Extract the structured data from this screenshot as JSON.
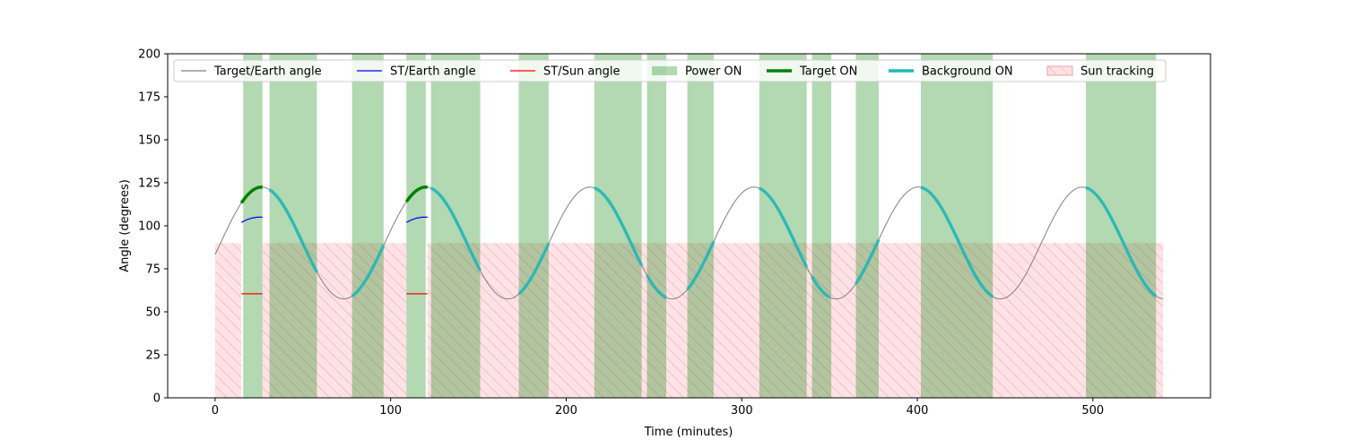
{
  "chart_data": {
    "type": "line",
    "title": "",
    "xlabel": "Time (minutes)",
    "ylabel": "Angle (degrees)",
    "xlim": [
      -27,
      567
    ],
    "ylim": [
      0,
      200
    ],
    "xticks": [
      0,
      100,
      200,
      300,
      400,
      500
    ],
    "yticks": [
      0,
      25,
      50,
      75,
      100,
      125,
      150,
      175,
      200
    ],
    "grid": false,
    "legend_position": "top, inside the axes",
    "series": [
      {
        "name": "Target/Earth angle",
        "color": "#808080",
        "style": "thin line",
        "curve": {
          "mean": 90.0,
          "amplitude": 32.5,
          "period_min": 93.5,
          "first_peak_min": 26.5,
          "x_start": 0,
          "x_end": 540
        }
      },
      {
        "name": "ST/Earth angle",
        "color": "#0000ff",
        "style": "thin line",
        "segments": [
          {
            "x": [
              15,
              18,
              21,
              24,
              27
            ],
            "y": [
              102,
              103.5,
              104.5,
              105,
              105
            ]
          },
          {
            "x": [
              109,
              112,
              115,
              118,
              121
            ],
            "y": [
              102,
              103.5,
              104.5,
              105,
              105
            ]
          }
        ]
      },
      {
        "name": "ST/Sun angle",
        "color": "#ff0000",
        "style": "thin line",
        "segments": [
          {
            "x": [
              15,
              27
            ],
            "y": [
              60.5,
              60.5
            ]
          },
          {
            "x": [
              109,
              121
            ],
            "y": [
              60.5,
              60.5
            ]
          }
        ]
      },
      {
        "name": "Target ON",
        "color": "#008000",
        "style": "thick line on Target/Earth curve",
        "intervals": [
          [
            15,
            27
          ],
          [
            109,
            121
          ]
        ]
      },
      {
        "name": "Background ON",
        "color": "#1fb8b8",
        "style": "thick line on Target/Earth curve",
        "intervals": [
          [
            31,
            58
          ],
          [
            78,
            96
          ],
          [
            123,
            151
          ],
          [
            173,
            190
          ],
          [
            216,
            243
          ],
          [
            246,
            257
          ],
          [
            269,
            284
          ],
          [
            310,
            337
          ],
          [
            340,
            350
          ],
          [
            365,
            378
          ],
          [
            402,
            443
          ],
          [
            496,
            536
          ]
        ]
      },
      {
        "name": "Power ON",
        "color": "#008000",
        "alpha": 0.3,
        "style": "vertical span, full height",
        "intervals": [
          [
            16,
            27
          ],
          [
            31,
            58
          ],
          [
            78,
            96
          ],
          [
            109,
            120
          ],
          [
            123,
            151
          ],
          [
            173,
            190
          ],
          [
            216,
            243
          ],
          [
            246,
            257
          ],
          [
            269,
            284
          ],
          [
            310,
            337
          ],
          [
            340,
            351
          ],
          [
            365,
            378
          ],
          [
            402,
            443
          ],
          [
            496,
            536
          ]
        ]
      },
      {
        "name": "Sun tracking",
        "color": "#ffb6c1",
        "edge_color": "#e8a0a8",
        "style": "hatched region",
        "y_range": [
          0,
          90
        ],
        "intervals": [
          [
            0,
            15
          ],
          [
            27,
            109
          ],
          [
            121,
            540
          ]
        ]
      }
    ],
    "legend": [
      "Target/Earth angle",
      "ST/Earth angle",
      "ST/Sun angle",
      "Power ON",
      "Target ON",
      "Background ON",
      "Sun tracking"
    ]
  }
}
